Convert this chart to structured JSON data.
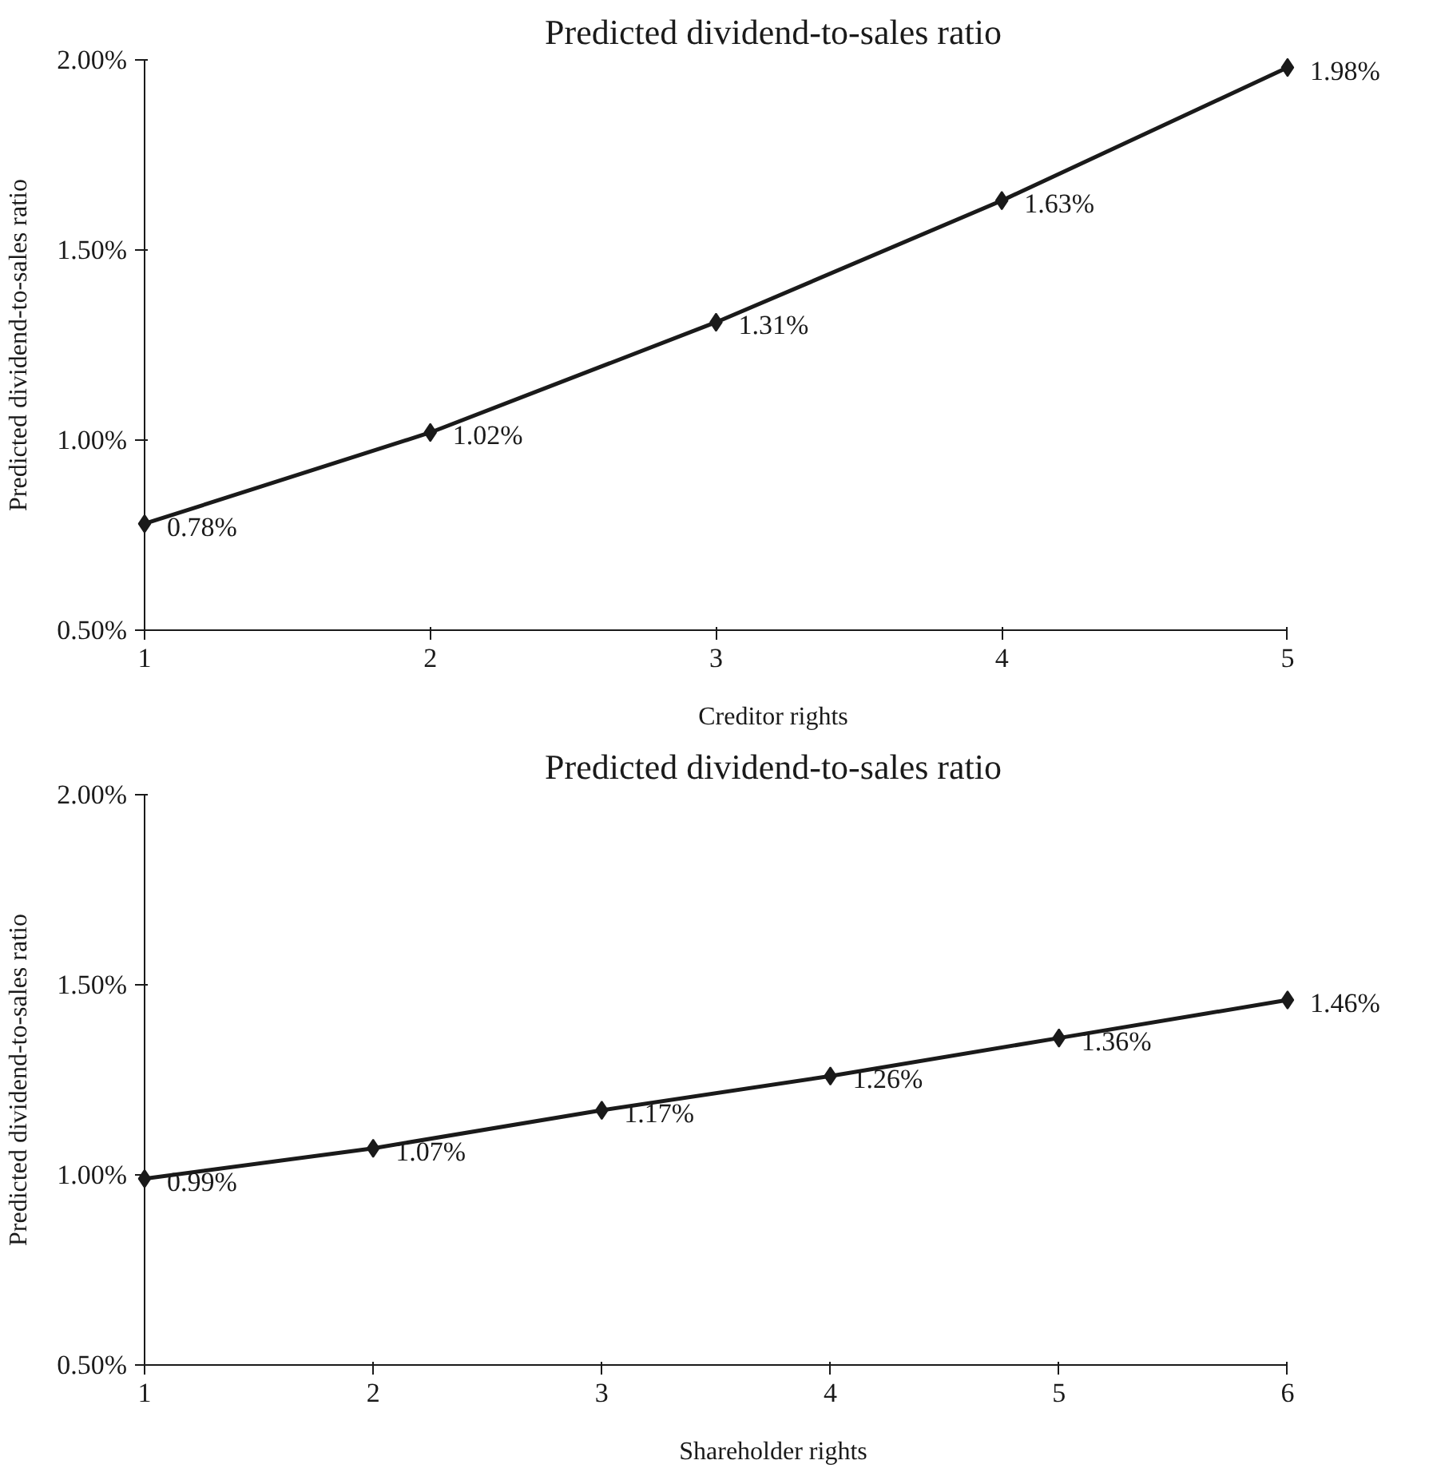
{
  "chart_data": [
    {
      "type": "line",
      "title": "Predicted dividend-to-sales ratio",
      "xlabel": "Creditor rights",
      "ylabel": "Predicted dividend-to-sales ratio",
      "x": [
        1,
        2,
        3,
        4,
        5
      ],
      "xlim": [
        1,
        5
      ],
      "xticks": [
        1,
        2,
        3,
        4,
        5
      ],
      "ylim": [
        0.5,
        2.0
      ],
      "yticks": [
        {
          "value": 0.5,
          "label": "0.50%"
        },
        {
          "value": 1.0,
          "label": "1.00%"
        },
        {
          "value": 1.5,
          "label": "1.50%"
        },
        {
          "value": 2.0,
          "label": "2.00%"
        }
      ],
      "marker": "diamond",
      "line_style": "solid",
      "series": [
        {
          "color": "#1a1a1a",
          "values": [
            0.78,
            1.02,
            1.31,
            1.63,
            1.98
          ],
          "value_labels": [
            "0.78%",
            "1.02%",
            "1.31%",
            "1.63%",
            "1.98%"
          ]
        }
      ]
    },
    {
      "type": "line",
      "title": "Predicted dividend-to-sales ratio",
      "xlabel": "Shareholder rights",
      "ylabel": "Predicted dividend-to-sales ratio",
      "x": [
        1,
        2,
        3,
        4,
        5,
        6
      ],
      "xlim": [
        1,
        6
      ],
      "xticks": [
        1,
        2,
        3,
        4,
        5,
        6
      ],
      "ylim": [
        0.5,
        2.0
      ],
      "yticks": [
        {
          "value": 0.5,
          "label": "0.50%"
        },
        {
          "value": 1.0,
          "label": "1.00%"
        },
        {
          "value": 1.5,
          "label": "1.50%"
        },
        {
          "value": 2.0,
          "label": "2.00%"
        }
      ],
      "marker": "diamond",
      "line_style": "solid",
      "series": [
        {
          "color": "#1a1a1a",
          "values": [
            0.99,
            1.07,
            1.17,
            1.26,
            1.36,
            1.46
          ],
          "value_labels": [
            "0.99%",
            "1.07%",
            "1.17%",
            "1.26%",
            "1.36%",
            "1.46%"
          ]
        }
      ]
    }
  ]
}
